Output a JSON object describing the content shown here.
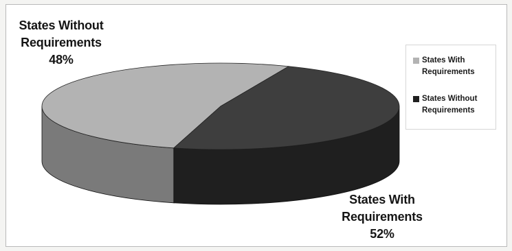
{
  "colors": {
    "with_top": "#b3b3b3",
    "with_side": "#7a7a7a",
    "without_top": "#3e3e3e",
    "without_side": "#1f1f1f"
  },
  "chart_data": {
    "type": "pie",
    "title": "",
    "slices": [
      {
        "label": "States With Requirements",
        "value": 52,
        "value_label": "52%",
        "callout_lines": [
          "States With",
          "Requirements"
        ],
        "legend_lines": [
          "States With",
          "Requirements"
        ],
        "color": "#b3b3b3"
      },
      {
        "label": "States Without Requirements",
        "value": 48,
        "value_label": "48%",
        "callout_lines": [
          "States Without",
          "Requirements"
        ],
        "legend_lines": [
          "States Without",
          "Requirements"
        ],
        "color": "#3e3e3e"
      }
    ],
    "legend_position": "right",
    "style": "3d"
  }
}
